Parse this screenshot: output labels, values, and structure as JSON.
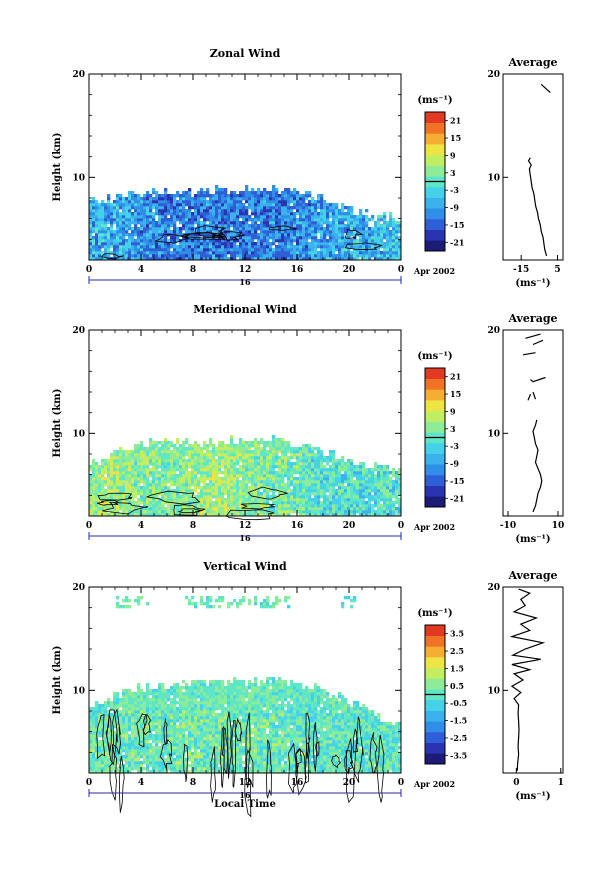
{
  "colors": {
    "colormap": [
      "#1c1c78",
      "#2a34b0",
      "#2f5fd6",
      "#2f8ee6",
      "#3bb2ee",
      "#45d2e8",
      "#5fe6c6",
      "#8cec98",
      "#c2ee62",
      "#eee444",
      "#f4ae32",
      "#f07226",
      "#e23a20"
    ],
    "contour": "#000000",
    "axis": "#000000"
  },
  "chart_data": [
    {
      "type": "heatmap",
      "name": "zonal",
      "title": "Zonal Wind",
      "ylabel": "Height (km)",
      "xlabel": "",
      "x_ticks": [
        "0",
        "4",
        "8",
        "12",
        "16",
        "20",
        "0"
      ],
      "y_ticks": [
        "20",
        "10"
      ],
      "xlim": [
        0,
        24
      ],
      "ylim": [
        2,
        20
      ],
      "date_marker": "16",
      "month_label": "Apr 2002",
      "colorbar": {
        "unit": "(ms⁻¹)",
        "ticks": [
          "21",
          "15",
          "9",
          "3",
          "-3",
          "-9",
          "-15",
          "-21"
        ],
        "range": [
          -24,
          24
        ]
      },
      "field": {
        "top_km": [
          7.6,
          7.8,
          8.0,
          8.2,
          8.4,
          8.6,
          8.7,
          8.6,
          8.5,
          8.7,
          8.9,
          8.8,
          8.9,
          9.1,
          9.0,
          8.7,
          8.6,
          8.3,
          7.9,
          7.4,
          6.9,
          6.6,
          6.3,
          6.2,
          6.1
        ],
        "mean_ms": [
          -7,
          -7,
          -8,
          -9,
          -10,
          -11,
          -12,
          -12,
          -12,
          -11,
          -12,
          -13,
          -13,
          -12,
          -12,
          -12,
          -11,
          -10,
          -9,
          -8,
          -8,
          -7,
          -6,
          -6,
          -6
        ],
        "amplitude_ms": 7
      },
      "profile": {
        "title": "Average",
        "xlabel": "(ms⁻¹)",
        "x_ticks": [
          "-15",
          "5"
        ],
        "y_ticks": [
          "20",
          "10"
        ],
        "xlim": [
          -25,
          8
        ],
        "ylim": [
          2,
          20
        ],
        "height_km": [
          2.4,
          3.0,
          3.6,
          4.2,
          4.8,
          5.4,
          6.0,
          6.6,
          7.2,
          7.8,
          8.4,
          9.0,
          9.6,
          10.2,
          10.8,
          11.2,
          11.6,
          11.9
        ],
        "wind_ms": [
          -1,
          -2,
          -2.5,
          -3,
          -4,
          -4.5,
          -5.5,
          -6,
          -7,
          -7.5,
          -8,
          -9,
          -9.5,
          -10,
          -10.5,
          -9.5,
          -11,
          -10
        ],
        "upper_segments": [
          {
            "height_km": [
              19.0,
              18.2
            ],
            "wind_ms": [
              -4,
              1
            ]
          }
        ]
      }
    },
    {
      "type": "heatmap",
      "name": "meridional",
      "title": "Meridional Wind",
      "ylabel": "Height (km)",
      "xlabel": "",
      "x_ticks": [
        "0",
        "4",
        "8",
        "12",
        "16",
        "20",
        "0"
      ],
      "y_ticks": [
        "20",
        "10"
      ],
      "xlim": [
        0,
        24
      ],
      "ylim": [
        2,
        20
      ],
      "date_marker": "16",
      "month_label": "Apr 2002",
      "colorbar": {
        "unit": "(ms⁻¹)",
        "ticks": [
          "21",
          "15",
          "9",
          "3",
          "-3",
          "-9",
          "-15",
          "-21"
        ],
        "range": [
          -24,
          24
        ]
      },
      "field": {
        "top_km": [
          7.4,
          7.6,
          8.0,
          8.4,
          8.9,
          9.3,
          9.4,
          9.2,
          9.1,
          9.0,
          9.2,
          9.3,
          9.5,
          9.6,
          9.5,
          9.3,
          9.0,
          8.6,
          8.2,
          7.8,
          7.4,
          7.0,
          6.8,
          6.6,
          6.5
        ],
        "mean_ms": [
          4,
          5,
          5,
          4,
          3,
          3,
          3,
          3,
          4,
          5,
          5,
          5,
          4,
          3,
          2,
          2,
          1,
          0,
          -1,
          -1,
          -2,
          -2,
          -1,
          -1,
          -1
        ],
        "amplitude_ms": 6
      },
      "profile": {
        "title": "Average",
        "xlabel": "(ms⁻¹)",
        "x_ticks": [
          "-10",
          "10"
        ],
        "y_ticks": [
          "20",
          "10"
        ],
        "xlim": [
          -12,
          12
        ],
        "ylim": [
          2,
          20
        ],
        "height_km": [
          2.4,
          3.0,
          3.6,
          4.2,
          4.8,
          5.4,
          6.0,
          6.6,
          7.2,
          7.8,
          8.4,
          9.0,
          9.6,
          10.2,
          10.8,
          11.3
        ],
        "wind_ms": [
          0,
          1,
          1.5,
          2,
          3,
          3.5,
          3,
          2,
          1,
          1.5,
          2,
          1,
          0.5,
          0,
          1,
          1.5
        ],
        "upper_segments": [
          {
            "height_km": [
              19.2,
              19.6
            ],
            "wind_ms": [
              -3,
              3
            ]
          },
          {
            "height_km": [
              18.6,
              19.0
            ],
            "wind_ms": [
              0,
              4
            ]
          },
          {
            "height_km": [
              17.6,
              17.8
            ],
            "wind_ms": [
              -4,
              1
            ]
          },
          {
            "height_km": [
              15.2,
              15.0,
              15.4
            ],
            "wind_ms": [
              -1,
              0,
              5
            ]
          },
          {
            "height_km": [
              13.2,
              13.8
            ],
            "wind_ms": [
              -2,
              -1
            ]
          },
          {
            "height_km": [
              14.0,
              13.3
            ],
            "wind_ms": [
              0,
              1
            ]
          }
        ]
      }
    },
    {
      "type": "heatmap",
      "name": "vertical",
      "title": "Vertical Wind",
      "ylabel": "Height (km)",
      "xlabel": "Local Time",
      "x_ticks": [
        "0",
        "4",
        "8",
        "12",
        "16",
        "20",
        "0"
      ],
      "y_ticks": [
        "20",
        "10"
      ],
      "xlim": [
        0,
        24
      ],
      "ylim": [
        2,
        20
      ],
      "date_marker": "16",
      "month_label": "Apr 2002",
      "colorbar": {
        "unit": "(ms⁻¹)",
        "ticks": [
          "3.5",
          "2.5",
          "1.5",
          "0.5",
          "-0.5",
          "-1.5",
          "-2.5",
          "-3.5"
        ],
        "range": [
          -4,
          4
        ]
      },
      "field": {
        "top_km": [
          8.5,
          9.0,
          9.5,
          10.0,
          10.2,
          10.3,
          10.5,
          10.6,
          10.7,
          10.8,
          10.9,
          11.0,
          10.8,
          10.9,
          11.0,
          10.8,
          10.6,
          10.4,
          10.0,
          9.6,
          9.0,
          8.4,
          7.6,
          7.0,
          6.6
        ],
        "mean_ms": [
          0.1,
          0.2,
          0.1,
          0.2,
          0.3,
          0.2,
          0.1,
          0.3,
          0.2,
          0.2,
          0.3,
          0.2,
          0.1,
          0.2,
          0.1,
          0.2,
          0.1,
          0.0,
          0.0,
          0.1,
          0.0,
          -0.1,
          0.0,
          0.0,
          0.0
        ],
        "amplitude_ms": 0.9,
        "upper_layer_km": [
          18.0,
          19.0
        ],
        "upper_layer_hours": [
          [
            2.0,
            4.5
          ],
          [
            7.5,
            15.5
          ],
          [
            19.5,
            20.5
          ]
        ]
      },
      "profile": {
        "title": "Average",
        "xlabel": "(ms⁻¹)",
        "x_ticks": [
          "0",
          "1"
        ],
        "y_ticks": [
          "20",
          "10"
        ],
        "xlim": [
          -0.3,
          1.05
        ],
        "ylim": [
          2,
          20
        ],
        "height_km": [
          2.2,
          3.0,
          3.8,
          4.6,
          5.4,
          6.2,
          7.0,
          7.8,
          8.6,
          9.2,
          9.8,
          10.4,
          11.0,
          11.6,
          12.0,
          12.5,
          13.0,
          13.4,
          14.0,
          14.6,
          15.2,
          15.8,
          16.4,
          17.0,
          17.6,
          18.2,
          18.8,
          19.4,
          19.8
        ],
        "wind_ms": [
          0.02,
          0.03,
          0.05,
          0.04,
          0.05,
          0.06,
          0.05,
          0.04,
          0.05,
          -0.05,
          0.1,
          -0.1,
          0.15,
          -0.05,
          0.3,
          -0.1,
          0.55,
          -0.08,
          0.2,
          0.6,
          -0.1,
          0.3,
          0.1,
          0.45,
          -0.05,
          0.2,
          0.1,
          0.3,
          0.05
        ]
      }
    }
  ]
}
